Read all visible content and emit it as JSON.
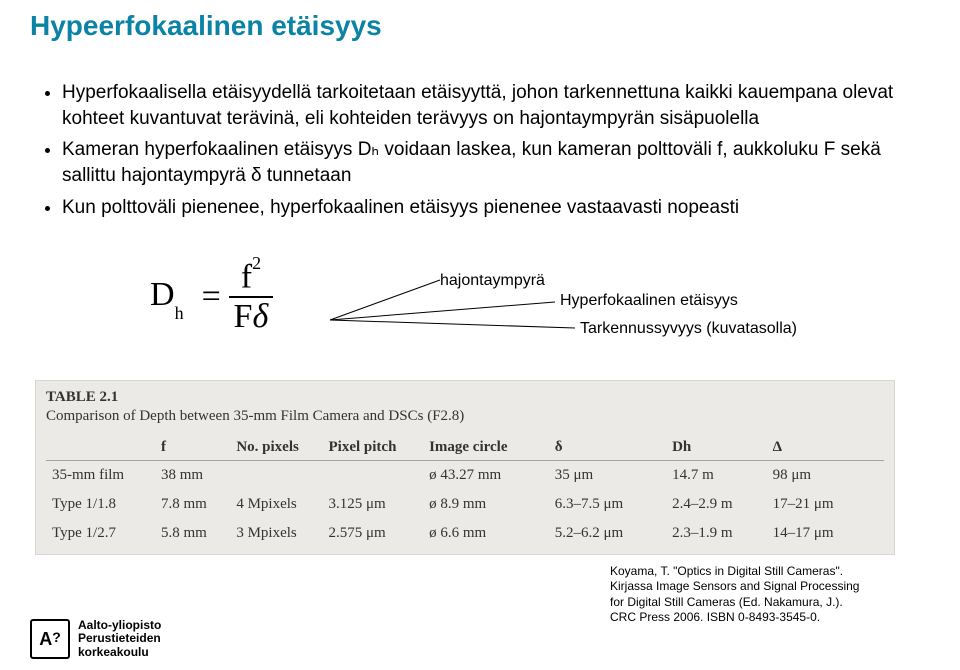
{
  "title": "Hypeerfokaalinen etäisyys",
  "bullets": [
    "Hyperfokaalisella etäisyydellä tarkoitetaan etäisyyttä, johon tarkennettuna kaikki kauempana olevat kohteet kuvantuvat terävinä, eli kohteiden terävyys on hajontaympyrän sisäpuolella",
    "Kameran hyperfokaalinen etäisyys Dₕ voidaan laskea, kun kameran polttoväli f, aukkoluku F sekä sallittu hajontaympyrä δ tunnetaan",
    "Kun polttoväli pienenee, hyperfokaalinen etäisyys pienenee vastaavasti nopeasti"
  ],
  "formula": {
    "lhs_D": "D",
    "lhs_sub": "h",
    "eq": "=",
    "num_f": "f",
    "num_sup": "2",
    "den_F": "F",
    "den_delta": "δ"
  },
  "annot": {
    "haj": "hajontaympyrä",
    "hyp": "Hyperfokaalinen etäisyys",
    "tark": "Tarkennussyvyys (kuvatasolla)"
  },
  "table": {
    "label": "TABLE 2.1",
    "caption": "Comparison of Depth between 35-mm Film Camera and DSCs (F2.8)",
    "caption_fontsize": 15,
    "background_color": "#eceae6",
    "border_color": "#d8d6d2",
    "header_border_color": "rgba(0,0,0,0.3)",
    "text_color": "#333333",
    "columns": [
      "",
      "f",
      "No. pixels",
      "Pixel pitch",
      "Image circle",
      "δ",
      "Dh",
      "Δ"
    ],
    "rows": [
      [
        "35-mm film",
        "38 mm",
        "",
        "",
        "ø 43.27 mm",
        "35 μm",
        "14.7 m",
        "98 μm"
      ],
      [
        "Type 1/1.8",
        "7.8 mm",
        "4 Mpixels",
        "3.125 μm",
        "ø 8.9 mm",
        "6.3–7.5 μm",
        "2.4–2.9 m",
        "17–21 μm"
      ],
      [
        "Type 1/2.7",
        "5.8 mm",
        "3 Mpixels",
        "2.575 μm",
        "ø 6.6 mm",
        "5.2–6.2 μm",
        "2.3–1.9 m",
        "14–17 μm"
      ]
    ],
    "col_widths_pct": [
      13,
      9,
      11,
      12,
      15,
      14,
      12,
      14
    ]
  },
  "citation": {
    "line1": "Koyama, T. \"Optics in Digital Still Cameras\".",
    "line2": "Kirjassa Image Sensors and Signal Processing",
    "line3": "for Digital Still Cameras (Ed. Nakamura, J.).",
    "line4": "CRC Press 2006. ISBN 0-8493-3545-0."
  },
  "logo": {
    "mark_A": "A",
    "mark_q": "?",
    "line1": "Aalto-yliopisto",
    "line2": "Perustieteiden",
    "line3": "korkeakoulu"
  },
  "colors": {
    "title": "#0b83a5",
    "background": "#ffffff",
    "text": "#000000",
    "annot_line": "#000000"
  }
}
